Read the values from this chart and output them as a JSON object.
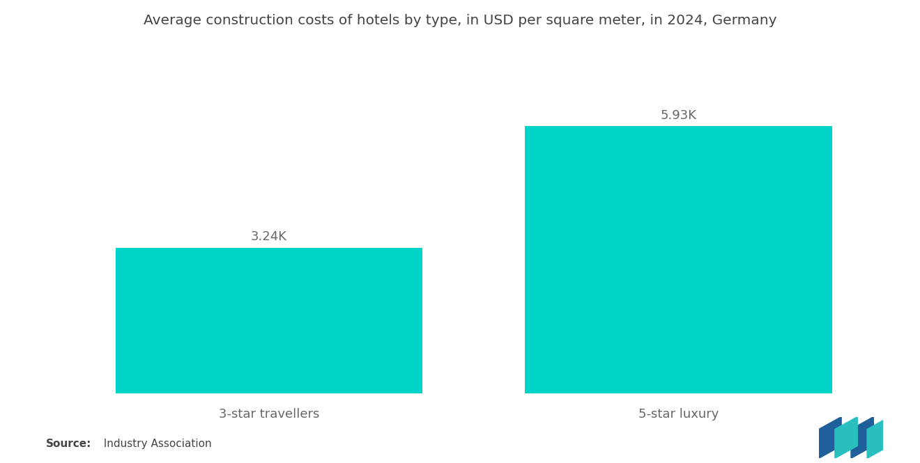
{
  "title": "Average construction costs of hotels by type, in USD per square meter, in 2024, Germany",
  "categories": [
    "3-star travellers",
    "5-star luxury"
  ],
  "values": [
    3240,
    5930
  ],
  "labels": [
    "3.24K",
    "5.93K"
  ],
  "bar_color": "#00D4C8",
  "background_color": "#ffffff",
  "title_fontsize": 14.5,
  "label_fontsize": 13,
  "tick_fontsize": 13,
  "source_bold": "Source:",
  "source_normal": "  Industry Association",
  "source_fontsize": 11,
  "ylim": [
    0,
    7500
  ],
  "bar_positions": [
    1,
    3
  ],
  "bar_width": 1.5,
  "xlim": [
    0,
    4
  ],
  "logo_blue": "#1F5F9A",
  "logo_teal": "#2ABFBF"
}
